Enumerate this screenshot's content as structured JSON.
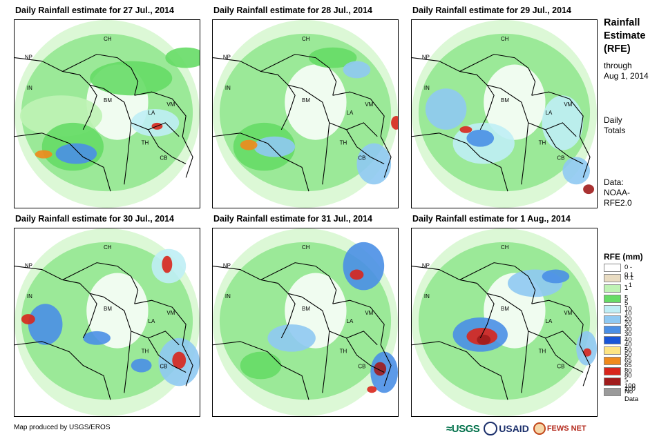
{
  "panels": [
    {
      "title": "Daily Rainfall estimate for 27 Jul., 2014"
    },
    {
      "title": "Daily Rainfall estimate for 28 Jul., 2014"
    },
    {
      "title": "Daily Rainfall estimate for 29 Jul., 2014"
    },
    {
      "title": "Daily Rainfall estimate for 30 Jul., 2014"
    },
    {
      "title": "Daily Rainfall estimate for 31 Jul., 2014"
    },
    {
      "title": "Daily Rainfall estimate for 1 Aug., 2014"
    }
  ],
  "map_labels": {
    "ch": "CH",
    "np": "NP",
    "in": "IN",
    "bm": "BM",
    "la": "LA",
    "vm": "VM",
    "th": "TH",
    "cb": "CB"
  },
  "sidebar": {
    "title_line1": "Rainfall",
    "title_line2": "Estimate",
    "title_line3": "(RFE)",
    "through": "through",
    "through_date": "Aug 1, 2014",
    "totals_line1": "Daily",
    "totals_line2": "Totals",
    "data_line1": "Data:",
    "data_line2": "NOAA-",
    "data_line3": "RFE2.0"
  },
  "legend": {
    "title": "RFE (mm)",
    "items": [
      {
        "label": "0 - 0.1",
        "color": "#ffffff"
      },
      {
        "label": "0.1 - 1",
        "color": "#e9dcc2"
      },
      {
        "label": "1 - 5",
        "color": "#bff3b5"
      },
      {
        "label": "5 - 10",
        "color": "#66dc66"
      },
      {
        "label": "10 - 20",
        "color": "#bfeef5"
      },
      {
        "label": "20 - 30",
        "color": "#8fc9f2"
      },
      {
        "label": "30 - 40",
        "color": "#4a8fe5"
      },
      {
        "label": "40 - 50",
        "color": "#1856d8"
      },
      {
        "label": "50 - 65",
        "color": "#fde483"
      },
      {
        "label": "65 - 80",
        "color": "#f08a1c"
      },
      {
        "label": "80 - 100",
        "color": "#d8261c"
      },
      {
        "label": "> 100",
        "color": "#a01c1c"
      },
      {
        "label": "No Data",
        "color": "#9a9a9a"
      }
    ]
  },
  "credit": "Map produced by USGS/EROS",
  "logos": {
    "usgs": "USGS",
    "usaid": "USAID",
    "fews": "FEWS NET"
  }
}
